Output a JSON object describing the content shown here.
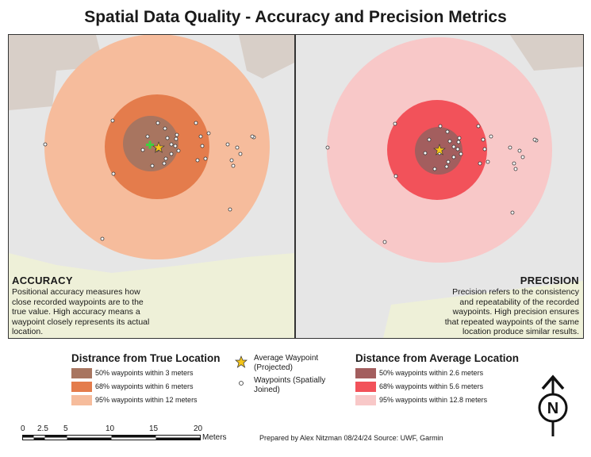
{
  "title": "Spatial Data Quality - Accuracy and Precision Metrics",
  "accuracy": {
    "heading": "ACCURACY",
    "text": "Positional accuracy measures how close recorded waypoints are to the true value. High accuracy means a waypoint closely represents its actual location."
  },
  "precision": {
    "heading": "PRECISION",
    "text": "Precision refers to the consistency and repeatability of the recorded waypoints. High precision ensures that repeated waypoints of the same location produce similar results."
  },
  "legend_true": {
    "title": "Distrance from True Location",
    "items": [
      {
        "label": "50% waypoints within 3 meters",
        "color": "#a87560"
      },
      {
        "label": "68% waypoints within 6 meters",
        "color": "#e47c4c"
      },
      {
        "label": "95% waypoints within 12 meters",
        "color": "#f6bc9c"
      }
    ]
  },
  "legend_avg": {
    "title": "Distance from Average Location",
    "items": [
      {
        "label": "50% waypoints within 2.6 meters",
        "color": "#a35e5e"
      },
      {
        "label": "68% waypoints within 5.6 meters",
        "color": "#f2525a"
      },
      {
        "label": "95% waypoints within 12.8 meters",
        "color": "#f8c8c8"
      }
    ]
  },
  "legend_symbols": {
    "average_waypoint": "Average Waypoint (Projected)",
    "waypoints": "Waypoints (Spatially Joined)",
    "star_color": "#f5c518"
  },
  "scale_bar": {
    "labels": [
      "0",
      "2.5",
      "5",
      "10",
      "15",
      "20"
    ],
    "unit": "Meters"
  },
  "credit": "Prepared by Alex Nitzman 08/24/24 Source: UWF, Garmin",
  "north_arrow": {
    "letter": "N"
  },
  "colors": {
    "background_map": "#e6e6e6",
    "vegetation": "#eef0d8",
    "building": "#d8cfc8",
    "true_location_marker": "#3fcf3f"
  }
}
